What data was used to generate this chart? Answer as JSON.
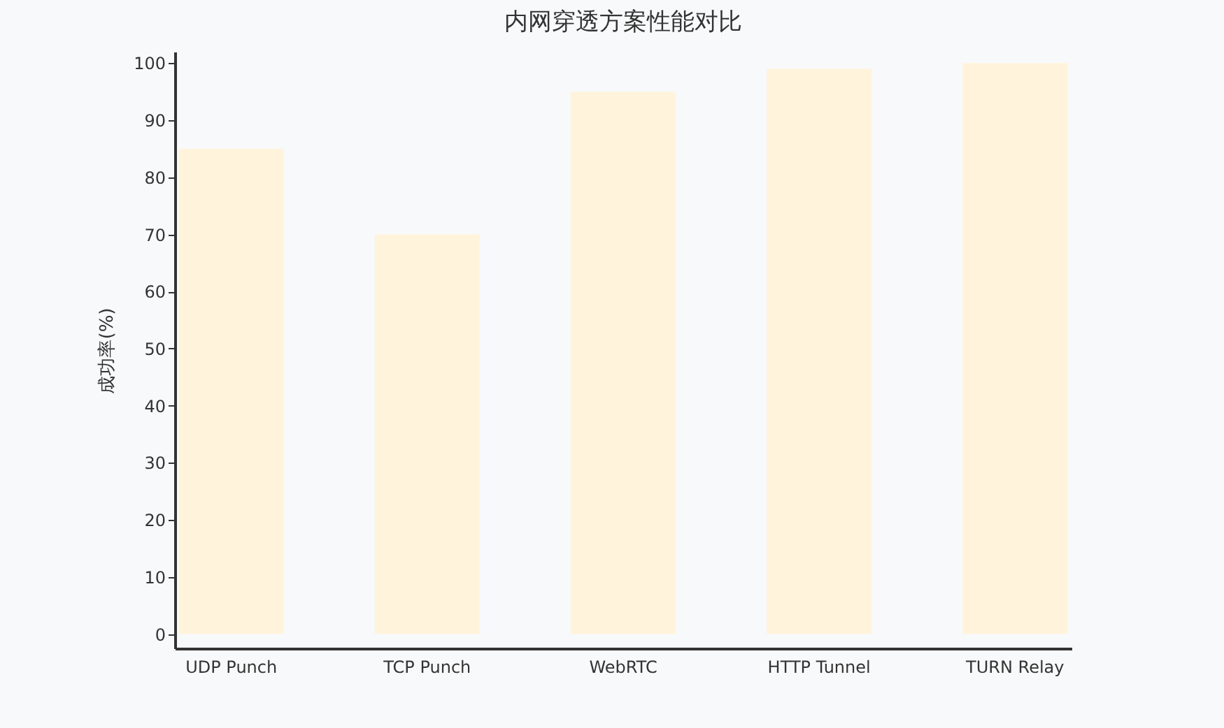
{
  "chart_data": {
    "type": "bar",
    "title": "内网穿透方案性能对比",
    "ylabel": "成功率(%)",
    "categories": [
      "UDP Punch",
      "TCP Punch",
      "WebRTC",
      "HTTP Tunnel",
      "TURN Relay"
    ],
    "values": [
      85,
      70,
      95,
      99,
      100
    ],
    "color": "#fff3dc",
    "ylim": [
      -2.5,
      102
    ],
    "yticks": [
      0,
      10,
      20,
      30,
      40,
      50,
      60,
      70,
      80,
      90,
      100
    ],
    "grid": false
  }
}
